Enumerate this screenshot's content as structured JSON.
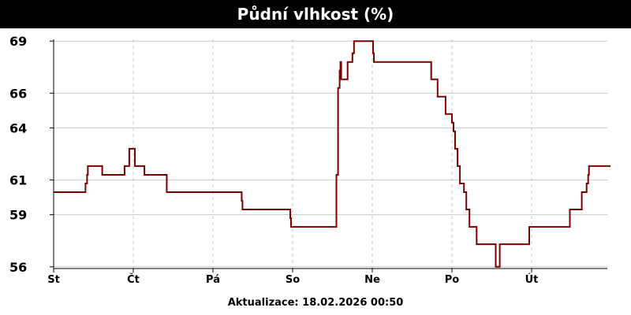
{
  "title": "Půdní vlhkost (%)",
  "footer": "Aktualizace: 18.02.2026 00:50",
  "colors": {
    "line": "#7a0000",
    "grid": "#c8c8c8",
    "axis": "#000000",
    "header_bg": "#000000"
  },
  "chart_data": {
    "type": "line",
    "title": "Půdní vlhkost (%)",
    "xlabel": "",
    "ylabel": "",
    "ylim": [
      55.9,
      69.1
    ],
    "xlim": [
      0,
      7
    ],
    "yticks": [
      56,
      59,
      61,
      64,
      66,
      69
    ],
    "xticks": [
      {
        "pos": 0,
        "label": "St"
      },
      {
        "pos": 1,
        "label": "Čt"
      },
      {
        "pos": 2,
        "label": "Pá"
      },
      {
        "pos": 3,
        "label": "So"
      },
      {
        "pos": 4,
        "label": "Ne"
      },
      {
        "pos": 5,
        "label": "Po"
      },
      {
        "pos": 6,
        "label": "Út"
      }
    ],
    "grid": true,
    "series": [
      {
        "values": [
          [
            0.0,
            60.3
          ],
          [
            0.38,
            60.3
          ],
          [
            0.4,
            60.8
          ],
          [
            0.42,
            61.3
          ],
          [
            0.43,
            61.8
          ],
          [
            0.6,
            61.8
          ],
          [
            0.61,
            61.3
          ],
          [
            0.88,
            61.3
          ],
          [
            0.89,
            61.8
          ],
          [
            0.94,
            61.8
          ],
          [
            0.95,
            62.8
          ],
          [
            1.01,
            62.8
          ],
          [
            1.02,
            61.8
          ],
          [
            1.13,
            61.8
          ],
          [
            1.14,
            61.3
          ],
          [
            1.41,
            61.3
          ],
          [
            1.42,
            60.3
          ],
          [
            2.35,
            60.3
          ],
          [
            2.36,
            59.8
          ],
          [
            2.37,
            59.3
          ],
          [
            2.96,
            59.3
          ],
          [
            2.97,
            58.8
          ],
          [
            2.98,
            58.3
          ],
          [
            3.53,
            58.3
          ],
          [
            3.55,
            61.3
          ],
          [
            3.57,
            66.3
          ],
          [
            3.59,
            67.3
          ],
          [
            3.6,
            67.8
          ],
          [
            3.61,
            66.8
          ],
          [
            3.68,
            66.8
          ],
          [
            3.69,
            67.8
          ],
          [
            3.74,
            67.8
          ],
          [
            3.75,
            68.3
          ],
          [
            3.77,
            69.0
          ],
          [
            4.0,
            69.0
          ],
          [
            4.01,
            68.3
          ],
          [
            4.02,
            67.8
          ],
          [
            4.73,
            67.8
          ],
          [
            4.74,
            66.8
          ],
          [
            4.81,
            66.8
          ],
          [
            4.82,
            65.8
          ],
          [
            4.91,
            65.8
          ],
          [
            4.92,
            64.8
          ],
          [
            4.99,
            64.8
          ],
          [
            5.0,
            64.3
          ],
          [
            5.02,
            63.8
          ],
          [
            5.04,
            62.8
          ],
          [
            5.07,
            61.8
          ],
          [
            5.1,
            60.8
          ],
          [
            5.15,
            60.3
          ],
          [
            5.18,
            59.3
          ],
          [
            5.22,
            58.3
          ],
          [
            5.3,
            58.3
          ],
          [
            5.31,
            57.3
          ],
          [
            5.52,
            57.3
          ],
          [
            5.55,
            56.0
          ],
          [
            5.58,
            56.0
          ],
          [
            5.6,
            57.3
          ],
          [
            5.95,
            57.3
          ],
          [
            5.97,
            58.3
          ],
          [
            6.47,
            58.3
          ],
          [
            6.48,
            59.3
          ],
          [
            6.62,
            59.3
          ],
          [
            6.63,
            60.3
          ],
          [
            6.68,
            60.3
          ],
          [
            6.69,
            60.8
          ],
          [
            6.71,
            61.3
          ],
          [
            6.72,
            61.8
          ],
          [
            6.99,
            61.8
          ]
        ]
      }
    ]
  }
}
